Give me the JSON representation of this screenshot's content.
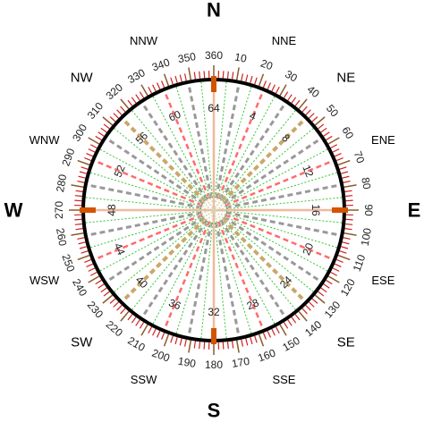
{
  "compass": {
    "cardinals": [
      {
        "label": "N",
        "azimuth": 0
      },
      {
        "label": "E",
        "azimuth": 90
      },
      {
        "label": "S",
        "azimuth": 180
      },
      {
        "label": "W",
        "azimuth": 270
      }
    ],
    "intercardinals": [
      {
        "label": "NE",
        "azimuth": 45
      },
      {
        "label": "SE",
        "azimuth": 135
      },
      {
        "label": "SW",
        "azimuth": 225
      },
      {
        "label": "NW",
        "azimuth": 315
      }
    ],
    "secondary_intercardinals": [
      {
        "label": "NNE",
        "azimuth": 22.5
      },
      {
        "label": "ENE",
        "azimuth": 67.5
      },
      {
        "label": "ESE",
        "azimuth": 112.5
      },
      {
        "label": "SSE",
        "azimuth": 157.5
      },
      {
        "label": "SSW",
        "azimuth": 202.5
      },
      {
        "label": "WSW",
        "azimuth": 247.5
      },
      {
        "label": "WNW",
        "azimuth": 292.5
      },
      {
        "label": "NNW",
        "azimuth": 337.5
      }
    ],
    "degree_labels": [
      "360",
      "10",
      "20",
      "30",
      "40",
      "50",
      "60",
      "70",
      "80",
      "90",
      "100",
      "110",
      "120",
      "130",
      "140",
      "150",
      "160",
      "170",
      "180",
      "190",
      "200",
      "210",
      "220",
      "230",
      "240",
      "250",
      "260",
      "270",
      "280",
      "290",
      "300",
      "310",
      "320",
      "330",
      "340",
      "350"
    ],
    "point_labels": [
      {
        "label": "64",
        "azimuth": 0
      },
      {
        "label": "4",
        "azimuth": 22.5
      },
      {
        "label": "8",
        "azimuth": 45
      },
      {
        "label": "12",
        "azimuth": 67.5
      },
      {
        "label": "16",
        "azimuth": 90
      },
      {
        "label": "20",
        "azimuth": 112.5
      },
      {
        "label": "24",
        "azimuth": 135
      },
      {
        "label": "28",
        "azimuth": 157.5
      },
      {
        "label": "32",
        "azimuth": 180
      },
      {
        "label": "36",
        "azimuth": 202.5
      },
      {
        "label": "40",
        "azimuth": 225
      },
      {
        "label": "44",
        "azimuth": 247.5
      },
      {
        "label": "48",
        "azimuth": 270
      },
      {
        "label": "52",
        "azimuth": 292.5
      },
      {
        "label": "56",
        "azimuth": 315
      },
      {
        "label": "60",
        "azimuth": 337.5
      }
    ],
    "points_total": 64,
    "colors": {
      "ring": "#000000",
      "tick_major": "#8b5a2b",
      "tick_minor": "#d02020",
      "cardinal_marker": "#d35400",
      "cardinal_line": "#f0b89a",
      "intercardinal_line": "#c9a86a",
      "eighth_line": "#ff6b6b",
      "sixteenth_line": "#999999",
      "thirtysecond_line": "#35c435",
      "center": "#d8d2b0"
    }
  }
}
